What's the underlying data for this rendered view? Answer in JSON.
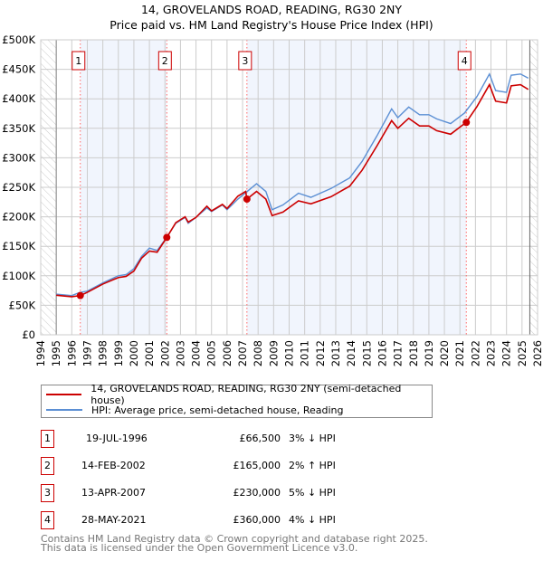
{
  "title": "14, GROVELANDS ROAD, READING, RG30 2NY",
  "subtitle": "Price paid vs. HM Land Registry's House Price Index (HPI)",
  "chart_data": {
    "type": "line",
    "title": "14, GROVELANDS ROAD, READING, RG30 2NY",
    "subtitle": "Price paid vs. HM Land Registry's House Price Index (HPI)",
    "xlim": [
      1994,
      2026
    ],
    "ylim": [
      0,
      500000
    ],
    "x_ticks": [
      "1994",
      "1995",
      "1996",
      "1997",
      "1998",
      "1999",
      "2000",
      "2001",
      "2002",
      "2003",
      "2004",
      "2005",
      "2006",
      "2007",
      "2008",
      "2009",
      "2010",
      "2011",
      "2012",
      "2013",
      "2014",
      "2015",
      "2016",
      "2017",
      "2018",
      "2019",
      "2020",
      "2021",
      "2022",
      "2023",
      "2024",
      "2025",
      "2026"
    ],
    "y_ticks": [
      "£0",
      "£50K",
      "£100K",
      "£150K",
      "£200K",
      "£250K",
      "£300K",
      "£350K",
      "£400K",
      "£450K",
      "£500K"
    ],
    "grid": true,
    "legend_position": "below",
    "series": [
      {
        "name": "14, GROVELANDS ROAD, READING, RG30 2NY (semi-detached house)",
        "color": "#cc0000",
        "x": [
          1995,
          1996,
          1996.55,
          1997,
          1998,
          1999,
          1999.5,
          2000,
          2000.5,
          2001,
          2001.5,
          2002.12,
          2002.7,
          2003.3,
          2003.5,
          2004,
          2004.7,
          2005,
          2005.7,
          2006,
          2006.7,
          2007.2,
          2007.28,
          2007.9,
          2008.5,
          2008.9,
          2009.6,
          2010.6,
          2011.4,
          2012.7,
          2013.9,
          2014.7,
          2015.65,
          2016.6,
          2017,
          2017.7,
          2018.4,
          2019,
          2019.5,
          2020.4,
          2021.4,
          2022.1,
          2022.9,
          2023.3,
          2024,
          2024.3,
          2024.9,
          2025.4
        ],
        "y": [
          67000,
          64500,
          66500,
          72000,
          86000,
          97000,
          99000,
          108000,
          130000,
          142000,
          140000,
          165000,
          190000,
          200000,
          191000,
          199000,
          218000,
          210000,
          221000,
          214000,
          235000,
          243000,
          230000,
          243000,
          230000,
          202000,
          208000,
          227000,
          222000,
          234000,
          252000,
          279000,
          320000,
          363000,
          350000,
          367000,
          354000,
          354000,
          346000,
          340000,
          360000,
          387000,
          424000,
          396000,
          393000,
          422000,
          424000,
          416000
        ]
      },
      {
        "name": "HPI: Average price, semi-detached house, Reading",
        "color": "#5b8fd4",
        "x": [
          1995,
          1996,
          1996.5,
          1997,
          1998,
          1999,
          1999.5,
          2000,
          2000.5,
          2001,
          2001.5,
          2002,
          2002.7,
          2003.3,
          2003.5,
          2004,
          2004.7,
          2005,
          2005.7,
          2006,
          2006.7,
          2007.3,
          2007.9,
          2008.5,
          2008.9,
          2009.6,
          2010.6,
          2011.4,
          2012.7,
          2013.9,
          2014.7,
          2015.65,
          2016.6,
          2017,
          2017.7,
          2018.4,
          2019,
          2019.5,
          2020.4,
          2021.3,
          2022.1,
          2022.9,
          2023.3,
          2024,
          2024.3,
          2024.9,
          2025.4
        ],
        "y": [
          69000,
          66500,
          71600,
          74000,
          88000,
          100000,
          102000,
          112000,
          133000,
          147000,
          143000,
          161000,
          189000,
          199000,
          189000,
          199000,
          215000,
          209000,
          220000,
          212000,
          230000,
          243000,
          256000,
          243000,
          212000,
          220000,
          240000,
          233000,
          248000,
          266000,
          294000,
          337000,
          383000,
          368000,
          386000,
          373000,
          373000,
          366000,
          358000,
          376000,
          404000,
          442000,
          414000,
          411000,
          440000,
          442000,
          435000
        ]
      }
    ],
    "sales": [
      {
        "label": "1",
        "x": 1996.55,
        "y": 66500
      },
      {
        "label": "2",
        "x": 2002.12,
        "y": 165000
      },
      {
        "label": "3",
        "x": 2007.28,
        "y": 230000
      },
      {
        "label": "4",
        "x": 2021.41,
        "y": 360000
      }
    ],
    "data_range": [
      1995,
      2025.5
    ]
  },
  "legend": {
    "property": "14, GROVELANDS ROAD, READING, RG30 2NY (semi-detached house)",
    "hpi": "HPI: Average price, semi-detached house, Reading"
  },
  "transactions": [
    {
      "num": "1",
      "date": "19-JUL-1996",
      "price": "£66,500",
      "hpi": "3% ↓ HPI"
    },
    {
      "num": "2",
      "date": "14-FEB-2002",
      "price": "£165,000",
      "hpi": "2% ↑ HPI"
    },
    {
      "num": "3",
      "date": "13-APR-2007",
      "price": "£230,000",
      "hpi": "5% ↓ HPI"
    },
    {
      "num": "4",
      "date": "28-MAY-2021",
      "price": "£360,000",
      "hpi": "4% ↓ HPI"
    }
  ],
  "footer": {
    "line1": "Contains HM Land Registry data © Crown copyright and database right 2025.",
    "line2": "This data is licensed under the Open Government Licence v3.0."
  }
}
